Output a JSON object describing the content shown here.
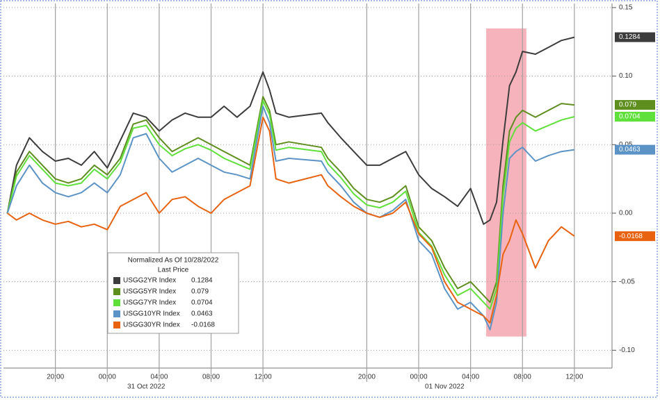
{
  "chart_data": {
    "type": "line",
    "legend_title": "Normalized As Of 10/28/2022",
    "legend_subtitle": "Last Price",
    "legend_position": "lower-left",
    "grid": true,
    "shaded_range": [
      29.2,
      32.3
    ],
    "shaded_color": "#f6b3bb",
    "x": [
      -7.7,
      -7,
      -6,
      -5,
      -4,
      -3,
      -2,
      -1,
      0,
      1,
      2,
      3,
      4,
      5,
      6,
      7,
      8,
      9,
      10,
      11,
      12,
      12.5,
      13,
      14,
      16.5,
      17,
      18,
      19,
      20,
      21,
      22,
      23,
      24,
      25,
      26,
      27,
      28,
      29,
      29.5,
      30,
      30.5,
      31,
      31.5,
      32,
      33,
      34,
      35,
      36
    ],
    "xlim": [
      -8,
      38.9
    ],
    "xticks": [
      {
        "value": -4,
        "label": "20:00"
      },
      {
        "value": 0,
        "label": "00:00"
      },
      {
        "value": 4,
        "label": "04:00"
      },
      {
        "value": 8,
        "label": "08:00"
      },
      {
        "value": 12,
        "label": "12:00"
      },
      {
        "value": 20,
        "label": "20:00"
      },
      {
        "value": 24,
        "label": "00:00"
      },
      {
        "value": 28,
        "label": "04:00"
      },
      {
        "value": 32,
        "label": "08:00"
      },
      {
        "value": 36,
        "label": "12:00"
      }
    ],
    "xdate_labels": [
      {
        "value": 3,
        "label": "31 Oct 2022"
      },
      {
        "value": 26,
        "label": "01 Nov 2022"
      }
    ],
    "ylim": [
      -0.113,
      0.153
    ],
    "yticks": [
      0.15,
      {
        "value": 0.1,
        "label": "0.10"
      },
      0.05,
      {
        "value": 0,
        "label": "0.00"
      },
      -0.05,
      {
        "value": -0.1,
        "label": "-0.10"
      }
    ],
    "series": [
      {
        "name": "USGG2YR Index",
        "color": "#3c3c3c",
        "values": [
          0.0,
          0.035,
          0.055,
          0.045,
          0.038,
          0.04,
          0.035,
          0.045,
          0.033,
          0.053,
          0.073,
          0.07,
          0.06,
          0.068,
          0.073,
          0.07,
          0.07,
          0.078,
          0.07,
          0.078,
          0.103,
          0.09,
          0.073,
          0.07,
          0.073,
          0.066,
          0.055,
          0.045,
          0.035,
          0.035,
          0.04,
          0.045,
          0.028,
          0.018,
          0.012,
          0.005,
          0.018,
          -0.008,
          -0.005,
          0.008,
          0.053,
          0.093,
          0.103,
          0.118,
          0.116,
          0.121,
          0.126,
          0.1284
        ]
      },
      {
        "name": "USGG5YR Index",
        "color": "#5e8e1e",
        "values": [
          0.0,
          0.03,
          0.045,
          0.035,
          0.025,
          0.022,
          0.025,
          0.035,
          0.028,
          0.04,
          0.065,
          0.068,
          0.055,
          0.045,
          0.05,
          0.055,
          0.05,
          0.045,
          0.04,
          0.035,
          0.085,
          0.075,
          0.05,
          0.052,
          0.048,
          0.04,
          0.03,
          0.018,
          0.01,
          0.008,
          0.012,
          0.02,
          -0.01,
          -0.02,
          -0.04,
          -0.055,
          -0.05,
          -0.06,
          -0.065,
          -0.05,
          0.02,
          0.06,
          0.07,
          0.075,
          0.07,
          0.075,
          0.08,
          0.079
        ]
      },
      {
        "name": "USGG7YR Index",
        "color": "#5fe03a",
        "values": [
          0.0,
          0.027,
          0.042,
          0.032,
          0.022,
          0.02,
          0.022,
          0.032,
          0.025,
          0.037,
          0.062,
          0.064,
          0.05,
          0.042,
          0.047,
          0.05,
          0.046,
          0.04,
          0.036,
          0.032,
          0.082,
          0.072,
          0.046,
          0.048,
          0.045,
          0.036,
          0.026,
          0.014,
          0.006,
          0.004,
          0.008,
          0.016,
          -0.014,
          -0.024,
          -0.045,
          -0.06,
          -0.055,
          -0.065,
          -0.07,
          -0.055,
          0.012,
          0.052,
          0.062,
          0.066,
          0.06,
          0.064,
          0.068,
          0.0704
        ]
      },
      {
        "name": "USGG10YR Index",
        "color": "#5b93c6",
        "values": [
          0.0,
          0.02,
          0.035,
          0.022,
          0.015,
          0.012,
          0.015,
          0.022,
          0.015,
          0.028,
          0.055,
          0.058,
          0.04,
          0.03,
          0.035,
          0.04,
          0.035,
          0.03,
          0.028,
          0.025,
          0.078,
          0.066,
          0.038,
          0.04,
          0.038,
          0.03,
          0.02,
          0.008,
          0.0,
          -0.003,
          0.002,
          0.01,
          -0.02,
          -0.03,
          -0.055,
          -0.07,
          -0.065,
          -0.075,
          -0.085,
          -0.065,
          0.0,
          0.04,
          0.045,
          0.048,
          0.038,
          0.042,
          0.045,
          0.0463
        ]
      },
      {
        "name": "USGG30YR Index",
        "color": "#e8620f",
        "values": [
          0.0,
          -0.005,
          0.0,
          -0.005,
          -0.008,
          -0.006,
          -0.01,
          -0.008,
          -0.012,
          0.005,
          0.01,
          0.015,
          0.0,
          0.01,
          0.012,
          0.005,
          0.0,
          0.01,
          0.015,
          0.02,
          0.07,
          0.06,
          0.025,
          0.022,
          0.028,
          0.02,
          0.012,
          0.005,
          0.0,
          -0.003,
          0.0,
          0.008,
          -0.015,
          -0.025,
          -0.05,
          -0.065,
          -0.07,
          -0.075,
          -0.08,
          -0.06,
          -0.03,
          -0.02,
          -0.005,
          -0.015,
          -0.04,
          -0.02,
          -0.01,
          -0.0168
        ]
      }
    ]
  }
}
